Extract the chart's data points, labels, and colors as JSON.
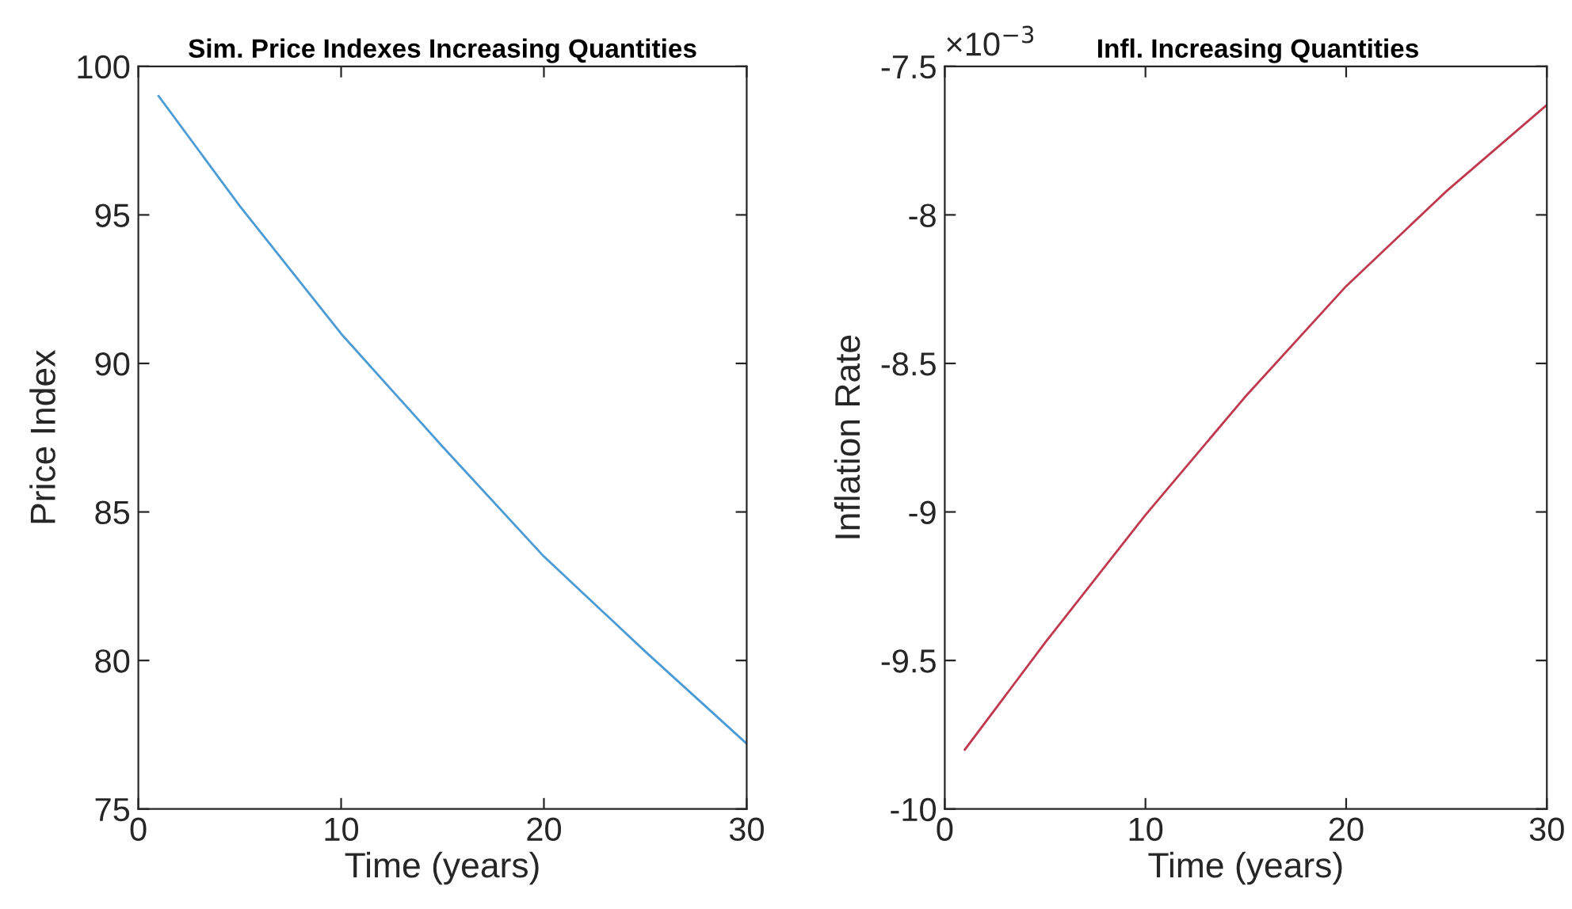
{
  "chart_data": [
    {
      "type": "line",
      "title": "Sim. Price Indexes Increasing Quantities",
      "xlabel": "Time (years)",
      "ylabel": "Price Index",
      "x": [
        1,
        5,
        10,
        15,
        20,
        25,
        30
      ],
      "series": [
        {
          "color": "#4a9bd6",
          "values": [
            99.0,
            95.3,
            91.0,
            87.2,
            83.5,
            80.3,
            77.2
          ]
        }
      ],
      "xlim": [
        0,
        30
      ],
      "xticks": [
        0,
        10,
        20,
        30
      ],
      "ylim": [
        75,
        100
      ],
      "yticks": [
        75,
        80,
        85,
        90,
        95,
        100
      ]
    },
    {
      "type": "line",
      "title": "Infl. Increasing Quantities",
      "xlabel": "Time (years)",
      "ylabel": "Inflation Rate",
      "x": [
        1,
        5,
        10,
        15,
        20,
        25,
        30
      ],
      "series": [
        {
          "color": "#c0394f",
          "values": [
            -9.8,
            -9.44,
            -9.01,
            -8.61,
            -8.24,
            -7.92,
            -7.63
          ]
        }
      ],
      "xlim": [
        0,
        30
      ],
      "xticks": [
        0,
        10,
        20,
        30
      ],
      "ylim": [
        -10,
        -7.5
      ],
      "yticks": [
        -10,
        -9.5,
        -9,
        -8.5,
        -8,
        -7.5
      ],
      "annotations": [
        "×10$^{−3}$"
      ]
    }
  ]
}
